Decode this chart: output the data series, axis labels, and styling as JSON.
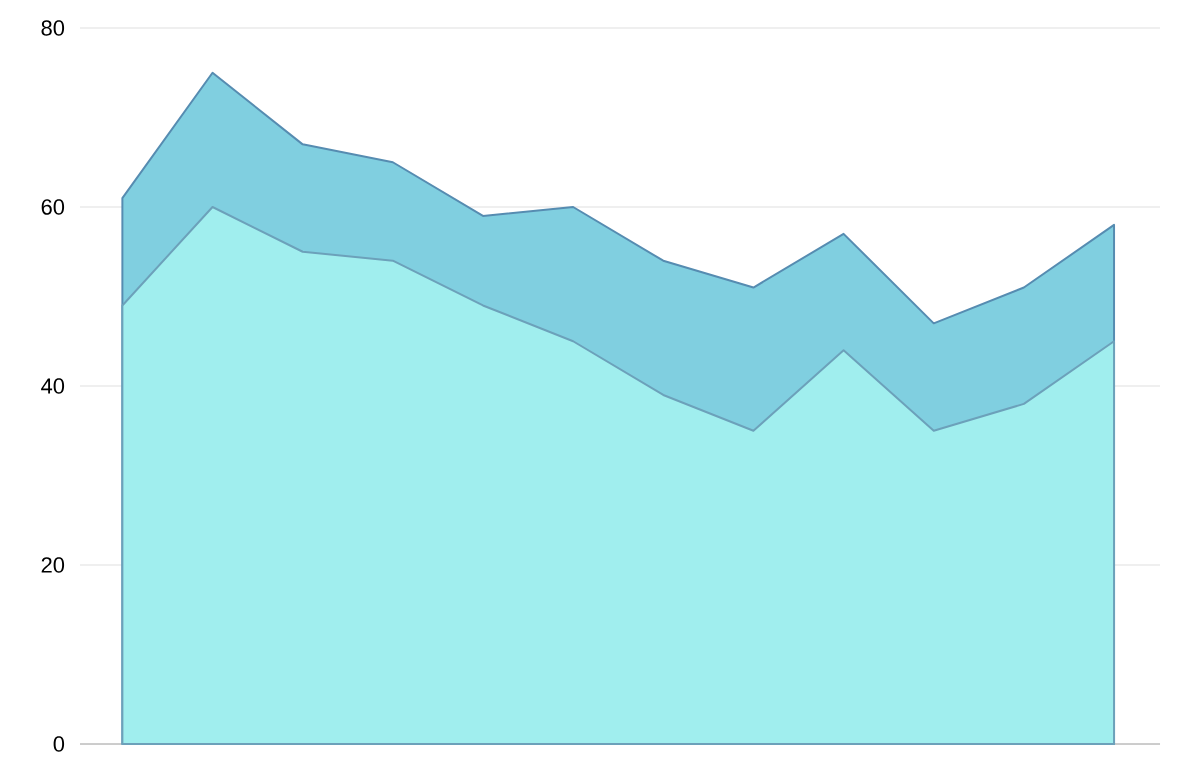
{
  "chart_data": {
    "type": "area",
    "categories": [
      null,
      null,
      null,
      null,
      null,
      null,
      null,
      null,
      null,
      null,
      null,
      null
    ],
    "series": [
      {
        "color": "#80cfe0",
        "values": [
          61,
          75,
          67,
          65,
          59,
          60,
          54,
          51,
          57,
          47,
          51,
          58
        ]
      },
      {
        "color": "#a0eeee",
        "values": [
          49,
          60,
          55,
          54,
          49,
          45,
          39,
          35,
          44,
          35,
          38,
          45
        ]
      }
    ],
    "ylim": [
      0,
      80
    ],
    "yticks": [
      0,
      20,
      40,
      60,
      80
    ],
    "grid": "y"
  }
}
